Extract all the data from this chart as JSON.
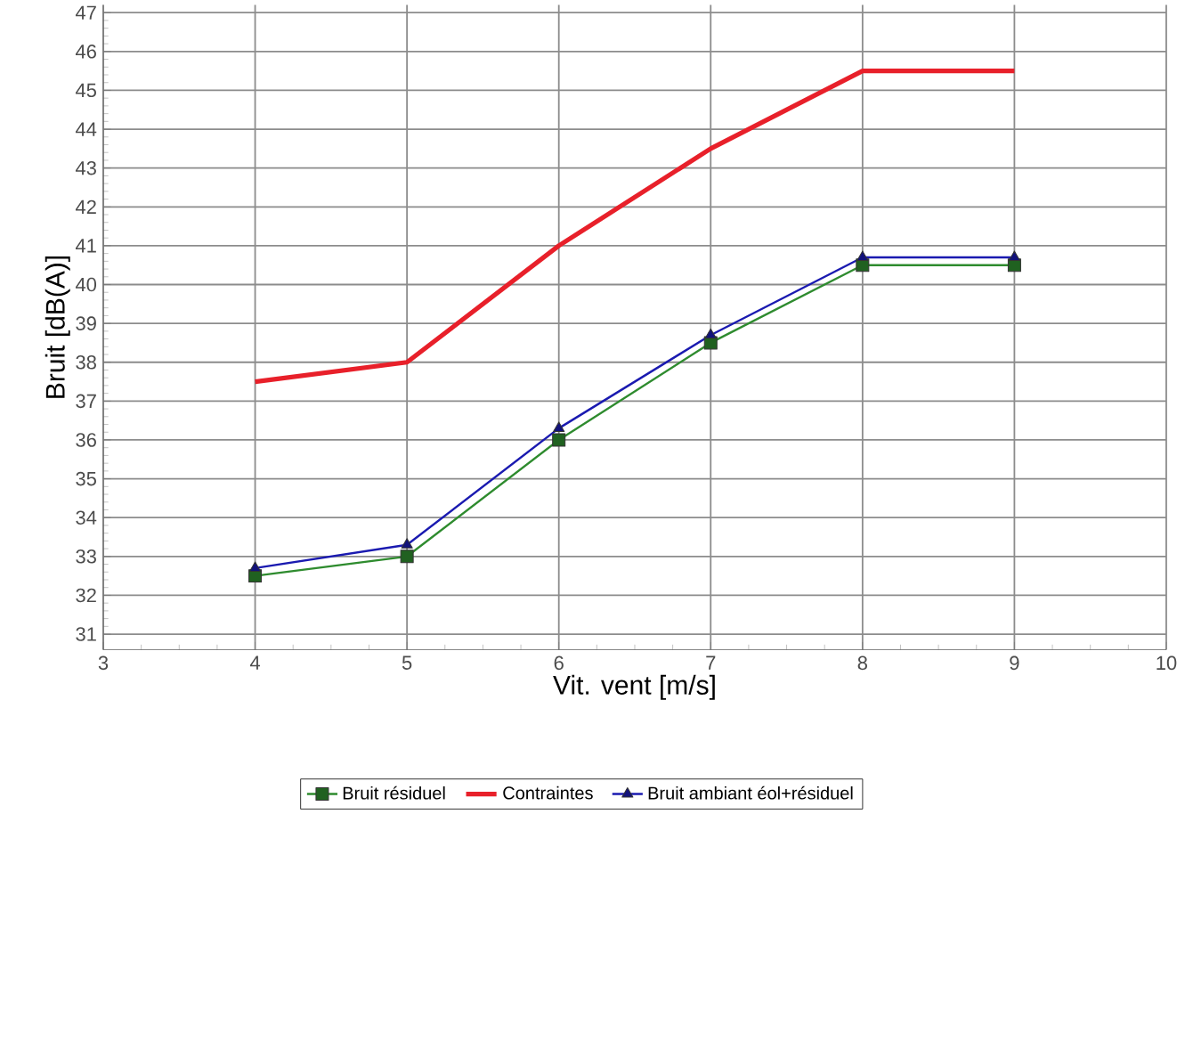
{
  "chart_data": {
    "type": "line",
    "xlabel": "Vit. vent [m/s]",
    "ylabel": "Bruit [dB(A)]",
    "x": [
      4,
      5,
      6,
      7,
      8,
      9
    ],
    "series": [
      {
        "name": "Bruit résiduel",
        "color": "#2e8b2e",
        "marker": "square",
        "values": [
          32.5,
          33,
          36,
          38.5,
          40.5,
          40.5
        ]
      },
      {
        "name": "Contraintes",
        "color": "#e8202a",
        "marker": "none",
        "values": [
          37.5,
          38,
          41,
          43.5,
          45.5,
          45.5
        ]
      },
      {
        "name": "Bruit ambiant éol+résiduel",
        "color": "#1a1ab0",
        "marker": "triangle",
        "values": [
          32.7,
          33.3,
          36.3,
          38.7,
          40.7,
          40.7
        ]
      }
    ],
    "xlim": [
      3,
      10
    ],
    "xticks": [
      3,
      4,
      5,
      6,
      7,
      8,
      9,
      10
    ],
    "ylim": [
      30.6,
      47.2
    ],
    "yticks": [
      31,
      32,
      33,
      34,
      35,
      36,
      37,
      38,
      39,
      40,
      41,
      42,
      43,
      44,
      45,
      46,
      47
    ],
    "grid": true,
    "legend": "bottom"
  }
}
